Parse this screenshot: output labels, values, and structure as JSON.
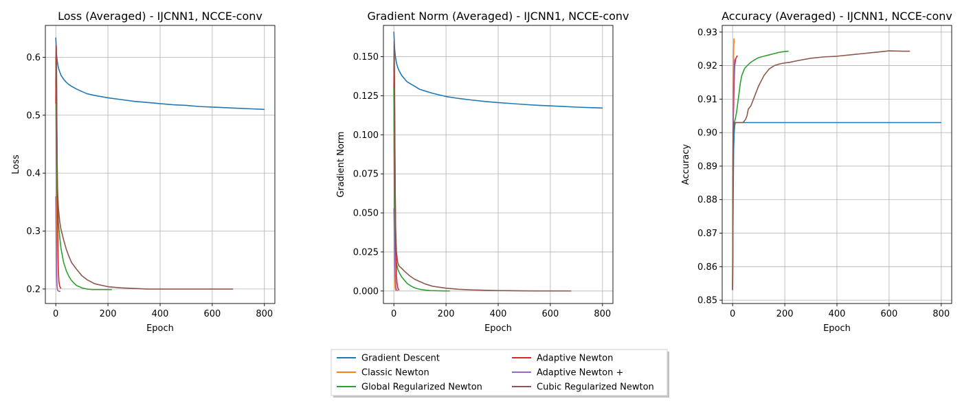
{
  "legend": {
    "entries": [
      {
        "label": "Gradient Descent",
        "color": "#1f77b4"
      },
      {
        "label": "Classic Newton",
        "color": "#ff7f0e"
      },
      {
        "label": "Global Regularized Newton",
        "color": "#2ca02c"
      },
      {
        "label": "Adaptive Newton",
        "color": "#d62728"
      },
      {
        "label": "Adaptive Newton +",
        "color": "#9467bd"
      },
      {
        "label": "Cubic Regularized Newton",
        "color": "#8c564b"
      }
    ],
    "placement": "bottom-center, 2 columns, shadowed"
  },
  "chart_data": [
    {
      "type": "line",
      "title": "Loss (Averaged) - IJCNN1, NCCE-conv",
      "xlabel": "Epoch",
      "ylabel": "Loss",
      "xlim": [
        -40,
        840
      ],
      "ylim": [
        0.175,
        0.655
      ],
      "xticks": [
        0,
        200,
        400,
        600,
        800
      ],
      "yticks": [
        0.2,
        0.3,
        0.4,
        0.5,
        0.6
      ],
      "ytick_labels": [
        "0.2",
        "0.3",
        "0.4",
        "0.5",
        "0.6"
      ],
      "grid": true,
      "series": [
        {
          "name": "Gradient Descent",
          "color": "#1f77b4",
          "x": [
            0,
            3,
            6,
            10,
            15,
            20,
            30,
            40,
            50,
            60,
            80,
            100,
            120,
            150,
            200,
            250,
            300,
            350,
            400,
            450,
            500,
            550,
            600,
            650,
            700,
            750,
            800
          ],
          "y": [
            0.634,
            0.605,
            0.592,
            0.582,
            0.575,
            0.569,
            0.562,
            0.557,
            0.553,
            0.55,
            0.545,
            0.541,
            0.537,
            0.534,
            0.53,
            0.527,
            0.524,
            0.522,
            0.52,
            0.518,
            0.517,
            0.515,
            0.514,
            0.513,
            0.512,
            0.511,
            0.51
          ]
        },
        {
          "name": "Classic Newton",
          "color": "#ff7f0e",
          "x": [
            0,
            1,
            2,
            3,
            4,
            5,
            6,
            7
          ],
          "y": [
            0.6,
            0.53,
            0.41,
            0.3,
            0.23,
            0.205,
            0.2,
            0.199
          ]
        },
        {
          "name": "Global Regularized Newton",
          "color": "#2ca02c",
          "x": [
            0,
            2,
            5,
            10,
            15,
            20,
            30,
            40,
            50,
            60,
            70,
            80,
            90,
            100,
            120,
            140,
            160,
            180,
            200,
            215
          ],
          "y": [
            0.56,
            0.45,
            0.36,
            0.315,
            0.29,
            0.27,
            0.246,
            0.232,
            0.222,
            0.215,
            0.21,
            0.206,
            0.204,
            0.202,
            0.2,
            0.199,
            0.199,
            0.199,
            0.199,
            0.199
          ]
        },
        {
          "name": "Adaptive Newton",
          "color": "#d62728",
          "x": [
            0,
            1,
            2,
            3,
            4,
            5,
            6,
            7,
            8,
            9,
            10,
            12,
            15,
            18,
            20
          ],
          "y": [
            0.52,
            0.6,
            0.62,
            0.58,
            0.5,
            0.44,
            0.38,
            0.32,
            0.28,
            0.25,
            0.23,
            0.213,
            0.205,
            0.202,
            0.201
          ]
        },
        {
          "name": "Adaptive Newton +",
          "color": "#9467bd",
          "x": [
            0,
            1,
            2,
            3,
            4,
            5,
            6,
            7,
            8,
            10,
            12,
            15,
            18
          ],
          "y": [
            0.36,
            0.31,
            0.26,
            0.23,
            0.21,
            0.205,
            0.2,
            0.198,
            0.197,
            0.197,
            0.196,
            0.196,
            0.196
          ]
        },
        {
          "name": "Cubic Regularized Newton",
          "color": "#8c564b",
          "x": [
            0,
            1,
            2,
            3,
            4,
            5,
            7,
            10,
            15,
            20,
            30,
            40,
            50,
            60,
            80,
            100,
            120,
            150,
            200,
            250,
            300,
            350,
            400,
            450,
            500,
            550,
            600,
            650,
            680
          ],
          "y": [
            0.56,
            0.62,
            0.6,
            0.55,
            0.48,
            0.42,
            0.37,
            0.34,
            0.317,
            0.303,
            0.285,
            0.269,
            0.257,
            0.246,
            0.234,
            0.223,
            0.216,
            0.209,
            0.204,
            0.202,
            0.201,
            0.2,
            0.2,
            0.2,
            0.2,
            0.2,
            0.2,
            0.2,
            0.2
          ]
        }
      ]
    },
    {
      "type": "line",
      "title": "Gradient Norm (Averaged) - IJCNN1, NCCE-conv",
      "xlabel": "Epoch",
      "ylabel": "Gradient Norm",
      "xlim": [
        -40,
        840
      ],
      "ylim": [
        -0.008,
        0.17
      ],
      "xticks": [
        0,
        200,
        400,
        600,
        800
      ],
      "yticks": [
        0.0,
        0.025,
        0.05,
        0.075,
        0.1,
        0.125,
        0.15
      ],
      "ytick_labels": [
        "0.000",
        "0.025",
        "0.050",
        "0.075",
        "0.100",
        "0.125",
        "0.150"
      ],
      "grid": true,
      "series": [
        {
          "name": "Gradient Descent",
          "color": "#1f77b4",
          "x": [
            0,
            3,
            6,
            10,
            15,
            20,
            30,
            40,
            50,
            60,
            80,
            100,
            120,
            150,
            200,
            250,
            300,
            350,
            400,
            450,
            500,
            550,
            600,
            650,
            700,
            750,
            800
          ],
          "y": [
            0.166,
            0.155,
            0.15,
            0.146,
            0.143,
            0.141,
            0.138,
            0.136,
            0.134,
            0.133,
            0.131,
            0.129,
            0.128,
            0.1265,
            0.1245,
            0.1232,
            0.1222,
            0.1213,
            0.1206,
            0.12,
            0.1194,
            0.1189,
            0.1185,
            0.1181,
            0.1177,
            0.1174,
            0.1171
          ]
        },
        {
          "name": "Classic Newton",
          "color": "#ff7f0e",
          "x": [
            0,
            1,
            2,
            3,
            4,
            5,
            6,
            7,
            8
          ],
          "y": [
            0.13,
            0.09,
            0.05,
            0.02,
            0.007,
            0.002,
            0.001,
            0.0005,
            0.0002
          ]
        },
        {
          "name": "Global Regularized Newton",
          "color": "#2ca02c",
          "x": [
            0,
            2,
            5,
            10,
            15,
            20,
            30,
            40,
            50,
            60,
            70,
            80,
            90,
            100,
            120,
            140,
            160,
            180,
            200,
            215
          ],
          "y": [
            0.13,
            0.06,
            0.028,
            0.018,
            0.014,
            0.012,
            0.009,
            0.007,
            0.005,
            0.0038,
            0.0028,
            0.002,
            0.0015,
            0.0011,
            0.0006,
            0.0003,
            0.0002,
            0.0001,
            5e-05,
            2e-05
          ]
        },
        {
          "name": "Adaptive Newton",
          "color": "#d62728",
          "x": [
            0,
            1,
            2,
            3,
            4,
            5,
            6,
            7,
            8,
            10,
            12,
            15,
            18,
            20
          ],
          "y": [
            0.13,
            0.15,
            0.14,
            0.12,
            0.095,
            0.07,
            0.05,
            0.035,
            0.022,
            0.01,
            0.005,
            0.002,
            0.001,
            0.0005
          ]
        },
        {
          "name": "Adaptive Newton +",
          "color": "#9467bd",
          "x": [
            0,
            1,
            2,
            3,
            4,
            5,
            6,
            7,
            8,
            10,
            12,
            15
          ],
          "y": [
            0.053,
            0.045,
            0.035,
            0.025,
            0.017,
            0.011,
            0.007,
            0.004,
            0.002,
            0.001,
            0.0005,
            0.0002
          ]
        },
        {
          "name": "Cubic Regularized Newton",
          "color": "#8c564b",
          "x": [
            0,
            1,
            2,
            3,
            4,
            5,
            7,
            10,
            15,
            20,
            30,
            40,
            50,
            60,
            80,
            100,
            120,
            150,
            200,
            250,
            300,
            350,
            400,
            450,
            500,
            550,
            600,
            650,
            680
          ],
          "y": [
            0.14,
            0.16,
            0.15,
            0.12,
            0.09,
            0.065,
            0.04,
            0.025,
            0.018,
            0.016,
            0.0145,
            0.0128,
            0.0113,
            0.0098,
            0.0075,
            0.006,
            0.0045,
            0.003,
            0.0018,
            0.0011,
            0.0007,
            0.0005,
            0.0003,
            0.0002,
            0.0001,
            7e-05,
            5e-05,
            3e-05,
            2e-05
          ]
        }
      ]
    },
    {
      "type": "line",
      "title": "Accuracy (Averaged) - IJCNN1, NCCE-conv",
      "xlabel": "Epoch",
      "ylabel": "Accuracy",
      "xlim": [
        -40,
        840
      ],
      "ylim": [
        0.849,
        0.932
      ],
      "xticks": [
        0,
        200,
        400,
        600,
        800
      ],
      "yticks": [
        0.85,
        0.86,
        0.87,
        0.88,
        0.89,
        0.9,
        0.91,
        0.92,
        0.93
      ],
      "ytick_labels": [
        "0.85",
        "0.86",
        "0.87",
        "0.88",
        "0.89",
        "0.90",
        "0.91",
        "0.92",
        "0.93"
      ],
      "grid": true,
      "series": [
        {
          "name": "Gradient Descent",
          "color": "#1f77b4",
          "x": [
            0,
            2,
            4,
            6,
            8,
            10,
            15,
            20,
            800
          ],
          "y": [
            0.853,
            0.88,
            0.895,
            0.9,
            0.902,
            0.903,
            0.903,
            0.903,
            0.903
          ]
        },
        {
          "name": "Classic Newton",
          "color": "#ff7f0e",
          "x": [
            0,
            1,
            2,
            3,
            4,
            5,
            6,
            7,
            8
          ],
          "y": [
            0.853,
            0.89,
            0.905,
            0.915,
            0.925,
            0.928,
            0.927,
            0.927,
            0.927
          ]
        },
        {
          "name": "Global Regularized Newton",
          "color": "#2ca02c",
          "x": [
            0,
            3,
            6,
            10,
            15,
            20,
            25,
            30,
            35,
            40,
            45,
            50,
            60,
            70,
            80,
            90,
            100,
            120,
            140,
            160,
            180,
            200,
            215
          ],
          "y": [
            0.853,
            0.9,
            0.903,
            0.904,
            0.906,
            0.909,
            0.912,
            0.915,
            0.917,
            0.918,
            0.919,
            0.9195,
            0.9203,
            0.921,
            0.9215,
            0.922,
            0.9224,
            0.9228,
            0.9232,
            0.9236,
            0.924,
            0.9242,
            0.9243
          ]
        },
        {
          "name": "Adaptive Newton",
          "color": "#d62728",
          "x": [
            0,
            1,
            2,
            3,
            4,
            5,
            6,
            7,
            8,
            10,
            12,
            15,
            18
          ],
          "y": [
            0.853,
            0.88,
            0.9,
            0.905,
            0.908,
            0.912,
            0.915,
            0.918,
            0.92,
            0.921,
            0.922,
            0.9225,
            0.923
          ]
        },
        {
          "name": "Adaptive Newton +",
          "color": "#9467bd",
          "x": [
            0,
            1,
            2,
            3,
            4,
            5,
            6,
            7,
            8,
            10,
            12,
            15
          ],
          "y": [
            0.853,
            0.89,
            0.905,
            0.91,
            0.915,
            0.918,
            0.92,
            0.921,
            0.9215,
            0.922,
            0.9222,
            0.9224
          ]
        },
        {
          "name": "Cubic Regularized Newton",
          "color": "#8c564b",
          "x": [
            0,
            2,
            5,
            10,
            20,
            30,
            40,
            50,
            55,
            60,
            70,
            80,
            90,
            100,
            120,
            140,
            160,
            180,
            200,
            220,
            250,
            300,
            350,
            400,
            450,
            500,
            550,
            600,
            650,
            680
          ],
          "y": [
            0.853,
            0.9,
            0.903,
            0.903,
            0.903,
            0.903,
            0.903,
            0.904,
            0.905,
            0.907,
            0.908,
            0.91,
            0.912,
            0.914,
            0.917,
            0.919,
            0.92,
            0.9205,
            0.9208,
            0.921,
            0.9215,
            0.9222,
            0.9226,
            0.9228,
            0.9232,
            0.9236,
            0.924,
            0.9244,
            0.9243,
            0.9243
          ]
        }
      ]
    }
  ]
}
